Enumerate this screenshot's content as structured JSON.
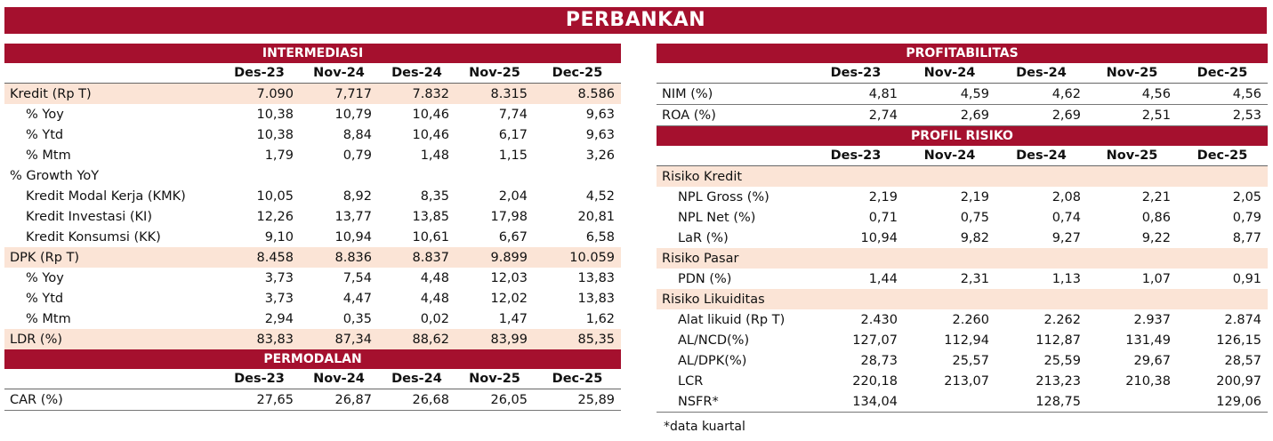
{
  "title": "PERBANKAN",
  "periods": [
    "Des-23",
    "Nov-24",
    "Des-24",
    "Nov-25",
    "Dec-25"
  ],
  "intermediasi": {
    "heading": "INTERMEDIASI",
    "rows": [
      {
        "label": "Kredit (Rp T)",
        "values": [
          "7.090",
          "7,717",
          "7.832",
          "8.315",
          "8.586"
        ]
      },
      {
        "label": "% Yoy",
        "values": [
          "10,38",
          "10,79",
          "10,46",
          "7,74",
          "9,63"
        ]
      },
      {
        "label": "% Ytd",
        "values": [
          "10,38",
          "8,84",
          "10,46",
          "6,17",
          "9,63"
        ]
      },
      {
        "label": "% Mtm",
        "values": [
          "1,79",
          "0,79",
          "1,48",
          "1,15",
          "3,26"
        ]
      },
      {
        "label": "% Growth YoY",
        "values": [
          "",
          "",
          "",
          "",
          ""
        ]
      },
      {
        "label": "Kredit Modal Kerja (KMK)",
        "values": [
          "10,05",
          "8,92",
          "8,35",
          "2,04",
          "4,52"
        ]
      },
      {
        "label": "Kredit Investasi (KI)",
        "values": [
          "12,26",
          "13,77",
          "13,85",
          "17,98",
          "20,81"
        ]
      },
      {
        "label": "Kredit Konsumsi (KK)",
        "values": [
          "9,10",
          "10,94",
          "10,61",
          "6,67",
          "6,58"
        ]
      },
      {
        "label": "DPK (Rp T)",
        "values": [
          "8.458",
          "8.836",
          "8.837",
          "9.899",
          "10.059"
        ]
      },
      {
        "label": "% Yoy",
        "values": [
          "3,73",
          "7,54",
          "4,48",
          "12,03",
          "13,83"
        ]
      },
      {
        "label": "% Ytd",
        "values": [
          "3,73",
          "4,47",
          "4,48",
          "12,02",
          "13,83"
        ]
      },
      {
        "label": "% Mtm",
        "values": [
          "2,94",
          "0,35",
          "0,02",
          "1,47",
          "1,62"
        ]
      },
      {
        "label": "LDR (%)",
        "values": [
          "83,83",
          "87,34",
          "88,62",
          "83,99",
          "85,35"
        ]
      }
    ]
  },
  "permodalan": {
    "heading": "PERMODALAN",
    "rows": [
      {
        "label": "CAR (%)",
        "values": [
          "27,65",
          "26,87",
          "26,68",
          "26,05",
          "25,89"
        ]
      }
    ]
  },
  "profitabilitas": {
    "heading": "PROFITABILITAS",
    "rows": [
      {
        "label": "NIM (%)",
        "values": [
          "4,81",
          "4,59",
          "4,62",
          "4,56",
          "4,56"
        ]
      },
      {
        "label": "ROA (%)",
        "values": [
          "2,74",
          "2,69",
          "2,69",
          "2,51",
          "2,53"
        ]
      }
    ]
  },
  "profil_risiko": {
    "heading": "PROFIL RISIKO",
    "rows": [
      {
        "label": "Risiko Kredit",
        "values": [
          "",
          "",
          "",
          "",
          ""
        ]
      },
      {
        "label": "NPL Gross (%)",
        "values": [
          "2,19",
          "2,19",
          "2,08",
          "2,21",
          "2,05"
        ]
      },
      {
        "label": "NPL Net (%)",
        "values": [
          "0,71",
          "0,75",
          "0,74",
          "0,86",
          "0,79"
        ]
      },
      {
        "label": "LaR (%)",
        "values": [
          "10,94",
          "9,82",
          "9,27",
          "9,22",
          "8,77"
        ]
      },
      {
        "label": "Risiko Pasar",
        "values": [
          "",
          "",
          "",
          "",
          ""
        ]
      },
      {
        "label": "PDN (%)",
        "values": [
          "1,44",
          "2,31",
          "1,13",
          "1,07",
          "0,91"
        ]
      },
      {
        "label": "Risiko Likuiditas",
        "values": [
          "",
          "",
          "",
          "",
          ""
        ]
      },
      {
        "label": "Alat likuid (Rp T)",
        "values": [
          "2.430",
          "2.260",
          "2.262",
          "2.937",
          "2.874"
        ]
      },
      {
        "label": "AL/NCD(%)",
        "values": [
          "127,07",
          "112,94",
          "112,87",
          "131,49",
          "126,15"
        ]
      },
      {
        "label": "AL/DPK(%)",
        "values": [
          "28,73",
          "25,57",
          "25,59",
          "29,67",
          "28,57"
        ]
      },
      {
        "label": "LCR",
        "values": [
          "220,18",
          "213,07",
          "213,23",
          "210,38",
          "200,97"
        ]
      },
      {
        "label": "NSFR*",
        "values": [
          "134,04",
          "",
          "128,75",
          "",
          "129,06"
        ]
      }
    ]
  },
  "footnote": "*data kuartal"
}
